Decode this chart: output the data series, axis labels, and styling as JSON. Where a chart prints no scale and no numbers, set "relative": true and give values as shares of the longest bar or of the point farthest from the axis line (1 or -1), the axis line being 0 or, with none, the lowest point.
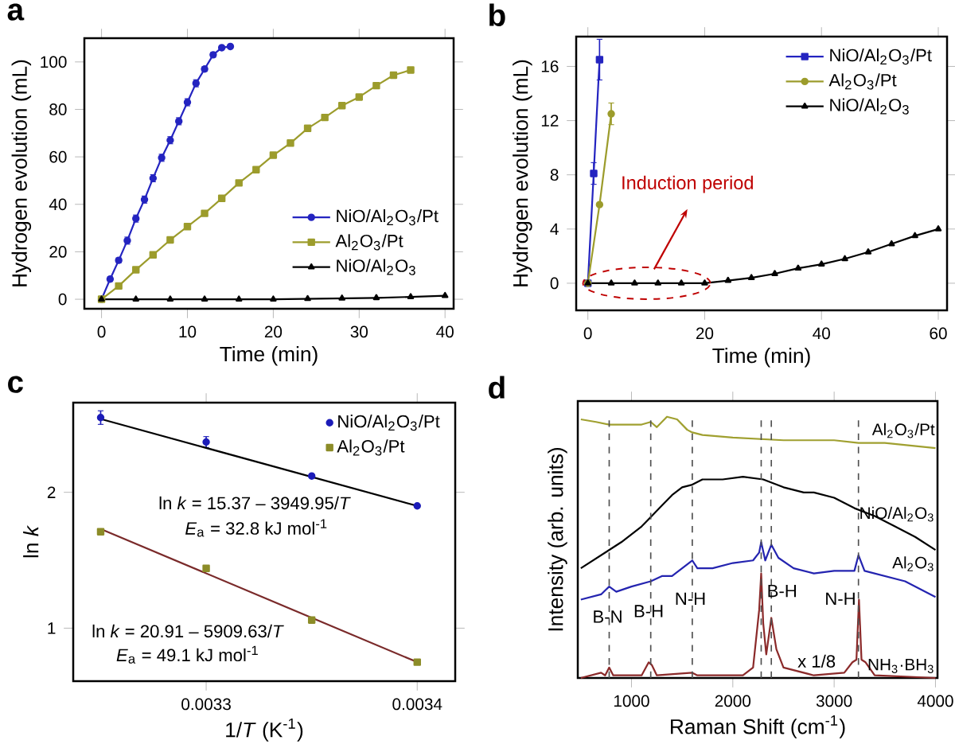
{
  "chart_data": [
    {
      "type": "line",
      "title": "a",
      "xlabel": "Time (min)",
      "ylabel": "Hydrogen evolution (mL)",
      "xlim": [
        -2,
        41
      ],
      "ylim": [
        -4,
        110
      ],
      "xticks": [
        0,
        10,
        20,
        30,
        40
      ],
      "yticks": [
        0,
        20,
        40,
        60,
        80,
        100
      ],
      "legend": "bottom right",
      "series": [
        {
          "name": "NiO/Al$_{2}$O$_{3}$/Pt",
          "color": "#2424c0",
          "marker": "circle",
          "x": [
            0,
            1,
            2,
            3,
            4,
            5,
            6,
            7,
            8,
            9,
            10,
            11,
            12,
            13,
            14,
            15
          ],
          "values": [
            0,
            8.5,
            16.4,
            24.7,
            34,
            42,
            51,
            59.6,
            67,
            75,
            83,
            91,
            97,
            103,
            106,
            106.5
          ],
          "errors": [
            null,
            1,
            1,
            1.5,
            1.5,
            1.5,
            1.5,
            1.5,
            1.5,
            1.5,
            1.5,
            1.5,
            1,
            1,
            null,
            null
          ]
        },
        {
          "name": "Al$_{2}$O$_{3}$/Pt",
          "color": "#9c9c2c",
          "marker": "square",
          "x": [
            0,
            2,
            4,
            6,
            8,
            10,
            12,
            14,
            16,
            18,
            20,
            22,
            24,
            26,
            28,
            30,
            32,
            34,
            36
          ],
          "values": [
            0,
            5.6,
            12.4,
            18.7,
            25,
            30.6,
            36.2,
            42.5,
            49,
            54.6,
            60.7,
            65.8,
            72,
            76.6,
            81.6,
            85.2,
            90,
            94.4,
            96.6
          ],
          "errors": [
            null,
            null,
            null,
            null,
            null,
            null,
            null,
            null,
            null,
            null,
            null,
            null,
            null,
            1,
            1,
            1,
            1,
            1,
            1
          ]
        },
        {
          "name": "NiO/Al$_{2}$O$_{3}$",
          "color": "#000000",
          "marker": "triangle",
          "x": [
            0,
            4,
            8,
            12,
            16,
            20,
            24,
            28,
            32,
            36,
            40
          ],
          "values": [
            0,
            0,
            0,
            0,
            0,
            0,
            0.2,
            0.4,
            0.6,
            1.0,
            1.5
          ]
        }
      ]
    },
    {
      "type": "line",
      "title": "b",
      "xlabel": "Time (min)",
      "ylabel": "Hydrogen evolution (mL)",
      "xlim": [
        -2,
        61.5
      ],
      "ylim": [
        -2,
        18.2
      ],
      "xticks": [
        0,
        20,
        40,
        60
      ],
      "yticks": [
        0,
        4,
        8,
        12,
        16
      ],
      "legend": "top right",
      "annotations": [
        "Induction period"
      ],
      "series": [
        {
          "name": "NiO/Al$_{2}$O$_{3}$/Pt",
          "color": "#2424c0",
          "marker": "square",
          "x": [
            0,
            1,
            2
          ],
          "values": [
            0,
            8.1,
            16.5
          ],
          "errors": [
            null,
            0.8,
            1.5
          ]
        },
        {
          "name": "Al$_{2}$O$_{3}$/Pt",
          "color": "#9c9c2c",
          "marker": "circle",
          "x": [
            0,
            2,
            4
          ],
          "values": [
            0,
            5.8,
            12.5
          ],
          "errors": [
            null,
            null,
            0.8
          ]
        },
        {
          "name": "NiO/Al$_{2}$O$_{3}$",
          "color": "#000000",
          "marker": "triangle",
          "x": [
            0,
            4,
            8,
            12,
            16,
            20,
            24,
            28,
            32,
            36,
            40,
            44,
            48,
            52,
            56,
            60
          ],
          "values": [
            0,
            0,
            0,
            0,
            0,
            0,
            0.2,
            0.4,
            0.7,
            1.1,
            1.4,
            1.8,
            2.3,
            2.9,
            3.5,
            4.0
          ]
        }
      ]
    },
    {
      "type": "scatter",
      "title": "c",
      "xlabel": "1/*T* (K$^{-1}$)",
      "ylabel": "ln *k*",
      "xlim": [
        0.003237,
        0.003418
      ],
      "ylim": [
        0.61,
        2.66
      ],
      "xticks": [
        0.0033,
        0.0034
      ],
      "yticks": [
        1,
        2
      ],
      "legend": "top right",
      "annotations": [
        "ln *k* = 15.37 – 3949.95/*T*",
        "*E*$_{a}$ =  32.8 kJ mol$^{-1}$",
        "ln *k* = 20.91 – 5909.63/*T*",
        "*E*$_{a}$ =  49.1 kJ mol$^{-1}$"
      ],
      "series": [
        {
          "name": "NiO/Al$_{2}$O$_{3}$/Pt",
          "color": "#1c1cb8",
          "marker": "circle",
          "x": [
            0.00325,
            0.0033,
            0.00335,
            0.0034
          ],
          "values": [
            2.55,
            2.37,
            2.12,
            1.9
          ],
          "errors": [
            0.05,
            0.04,
            null,
            null
          ]
        },
        {
          "name": "Al$_{2}$O$_{3}$/Pt",
          "color": "#8c8c28",
          "marker": "square",
          "x": [
            0.00325,
            0.0033,
            0.00335,
            0.0034
          ],
          "values": [
            1.71,
            1.44,
            1.06,
            0.75
          ]
        },
        {
          "type": "line",
          "color": "#000000",
          "x": [
            0.00325,
            0.0034
          ],
          "values": [
            2.54,
            1.9
          ]
        },
        {
          "type": "line",
          "color": "#7a2a2a",
          "x": [
            0.00325,
            0.0034
          ],
          "values": [
            1.73,
            0.75
          ]
        }
      ]
    },
    {
      "type": "line",
      "title": "d",
      "xlabel": "Raman Shift (cm$^{-1}$)",
      "ylabel": "Intensity (arb. units)",
      "relative": true,
      "xlim": [
        470,
        4020
      ],
      "xticks": [
        1000,
        2000,
        3000,
        4000
      ],
      "legend": false,
      "ref_lines": [
        {
          "axis": "x",
          "value": 780,
          "color": "#505050",
          "line_style": "dashed"
        },
        {
          "axis": "x",
          "value": 1190,
          "color": "#505050",
          "line_style": "dashed"
        },
        {
          "axis": "x",
          "value": 1600,
          "color": "#505050",
          "line_style": "dashed"
        },
        {
          "axis": "x",
          "value": 2280,
          "color": "#505050",
          "line_style": "dashed"
        },
        {
          "axis": "x",
          "value": 2380,
          "color": "#505050",
          "line_style": "dashed"
        },
        {
          "axis": "x",
          "value": 3240,
          "color": "#505050",
          "line_style": "dashed"
        }
      ],
      "annotations": [
        "B-N",
        "B-H",
        "N-H",
        "B-H",
        "N-H",
        "x 1/8"
      ],
      "series": [
        {
          "name": "Al$_{2}$O$_{3}$/Pt",
          "color": "#a0a030",
          "x": [
            500,
            650,
            780,
            900,
            1100,
            1190,
            1250,
            1350,
            1450,
            1550,
            1600,
            1700,
            2000,
            2500,
            3000,
            3240,
            3500,
            4000
          ],
          "values": [
            0.99,
            0.98,
            0.97,
            0.97,
            0.97,
            0.98,
            0.96,
            1.0,
            0.99,
            0.95,
            0.94,
            0.93,
            0.92,
            0.91,
            0.91,
            0.9,
            0.9,
            0.88
          ]
        },
        {
          "name": "NiO/Al$_{2}$O$_{3}$",
          "color": "#000000",
          "x": [
            500,
            700,
            900,
            1100,
            1200,
            1300,
            1400,
            1500,
            1600,
            1700,
            1900,
            2100,
            2300,
            2500,
            2700,
            2800,
            3000,
            3200,
            3400,
            3600,
            3800,
            4000
          ],
          "values": [
            0.42,
            0.47,
            0.52,
            0.58,
            0.62,
            0.66,
            0.7,
            0.73,
            0.74,
            0.76,
            0.76,
            0.77,
            0.76,
            0.73,
            0.71,
            0.71,
            0.69,
            0.65,
            0.62,
            0.58,
            0.54,
            0.49
          ]
        },
        {
          "name": "Al$_{2}$O$_{3}$",
          "color": "#2424b0",
          "x": [
            500,
            700,
            780,
            850,
            1000,
            1190,
            1300,
            1400,
            1600,
            1650,
            1800,
            2000,
            2200,
            2260,
            2280,
            2320,
            2380,
            2450,
            2600,
            2800,
            3000,
            3200,
            3240,
            3300,
            3500,
            3700,
            4000
          ],
          "values": [
            0.3,
            0.32,
            0.35,
            0.33,
            0.35,
            0.37,
            0.39,
            0.39,
            0.45,
            0.42,
            0.42,
            0.44,
            0.45,
            0.48,
            0.52,
            0.45,
            0.51,
            0.46,
            0.42,
            0.4,
            0.41,
            0.41,
            0.47,
            0.41,
            0.39,
            0.37,
            0.31
          ]
        },
        {
          "name": "NH$_{3}$·BH$_{3}$",
          "color": "#8b2a2a",
          "x": [
            500,
            700,
            740,
            780,
            820,
            1100,
            1170,
            1200,
            1250,
            1600,
            1650,
            2100,
            2200,
            2260,
            2280,
            2300,
            2330,
            2380,
            2430,
            2500,
            2800,
            3100,
            3180,
            3220,
            3245,
            3270,
            3310,
            3400,
            4000
          ],
          "values": [
            0,
            0.02,
            0.01,
            0.04,
            0.01,
            0.01,
            0.06,
            0.05,
            0.01,
            0.02,
            0.01,
            0.01,
            0.04,
            0.26,
            0.4,
            0.21,
            0.09,
            0.23,
            0.11,
            0.04,
            0.01,
            0.02,
            0.06,
            0.07,
            0.3,
            0.07,
            0.06,
            0.01,
            0
          ]
        }
      ]
    }
  ]
}
